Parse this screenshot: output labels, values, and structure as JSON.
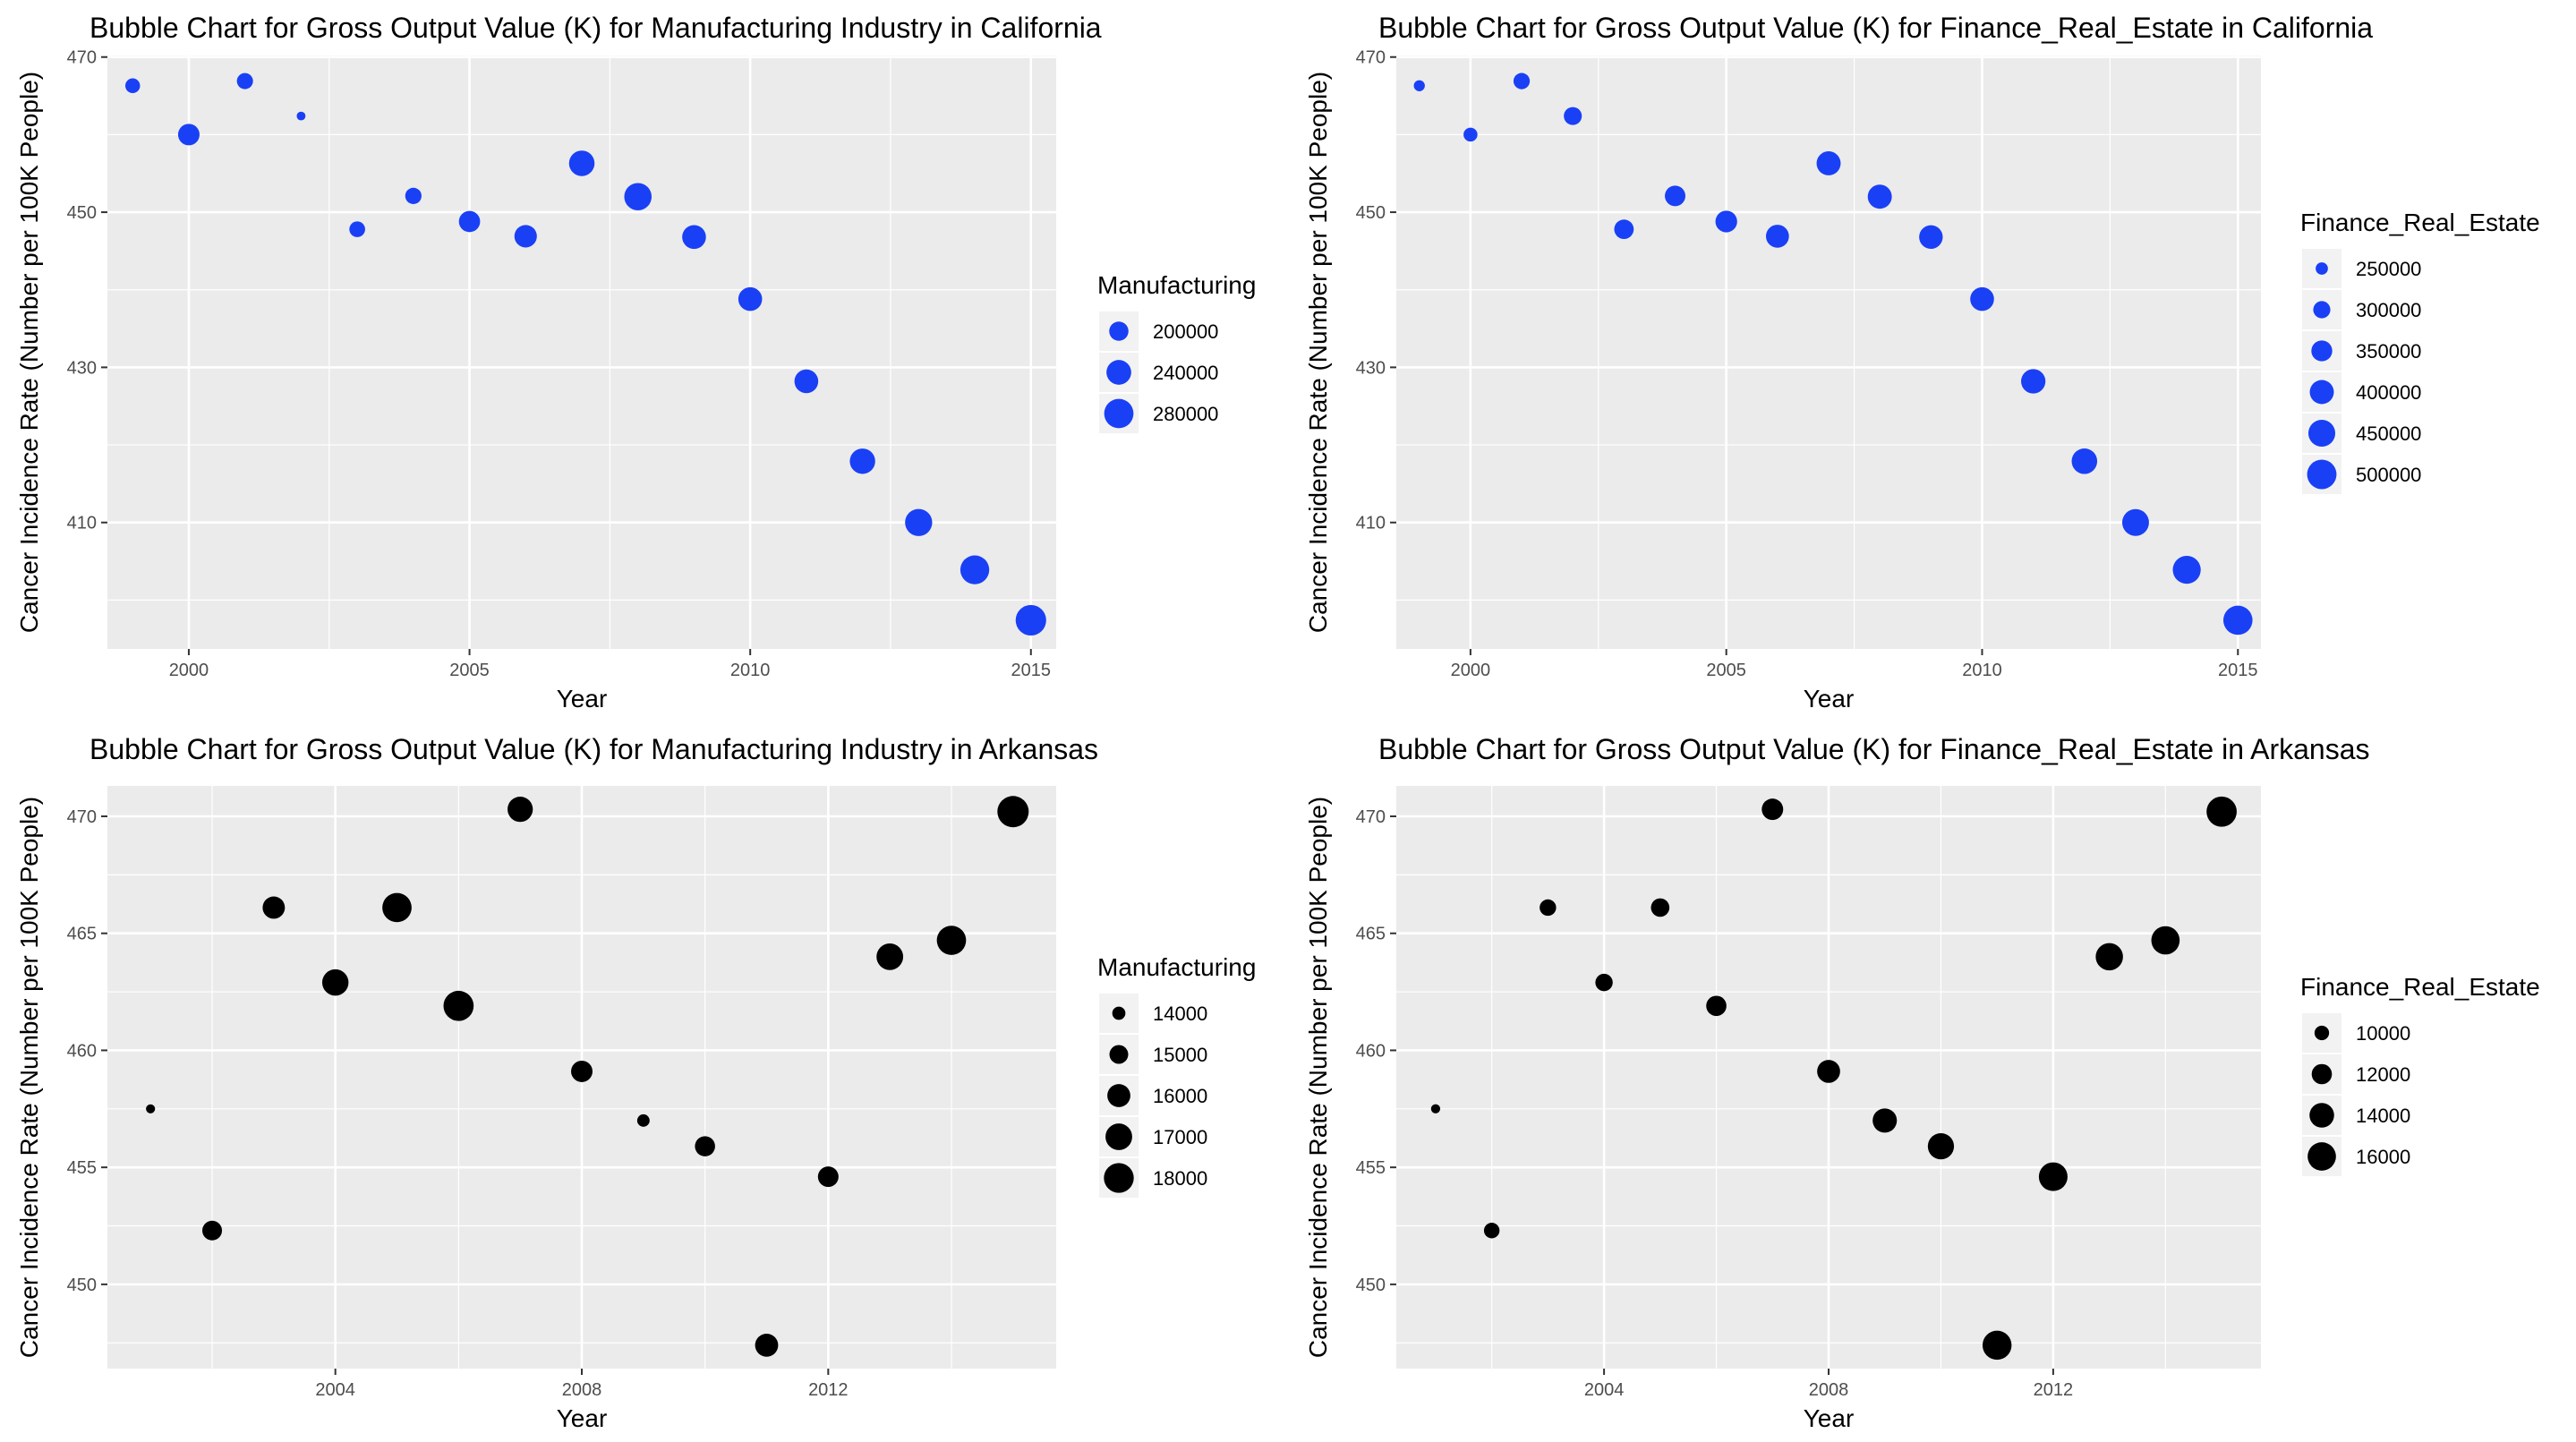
{
  "chart_data": [
    {
      "type": "scatter",
      "title": "Bubble Chart for Gross Output Value (K) for Manufacturing Industry in California",
      "xlabel": "Year",
      "ylabel": "Cancer Incidence Rate (Number per 100K People)",
      "xlim": [
        1998.55,
        2015.45
      ],
      "ylim": [
        393.7,
        470.2
      ],
      "xticks": [
        2000,
        2005,
        2010,
        2015
      ],
      "yticks": [
        410,
        430,
        450,
        470
      ],
      "grid": true,
      "color": "#1a40f5",
      "legend": {
        "title": "Manufacturing",
        "placement": "right",
        "items": [
          {
            "label": "200000",
            "size": 200000
          },
          {
            "label": "240000",
            "size": 240000
          },
          {
            "label": "280000",
            "size": 280000
          }
        ]
      },
      "size_range": [
        150000,
        300000
      ],
      "points": [
        {
          "x": 1999,
          "y": 466.3,
          "size": 175000
        },
        {
          "x": 2000,
          "y": 460.0,
          "size": 215000
        },
        {
          "x": 2001,
          "y": 466.9,
          "size": 182000
        },
        {
          "x": 2002,
          "y": 462.4,
          "size": 152000
        },
        {
          "x": 2003,
          "y": 447.8,
          "size": 180000
        },
        {
          "x": 2004,
          "y": 452.1,
          "size": 183000
        },
        {
          "x": 2005,
          "y": 448.8,
          "size": 213000
        },
        {
          "x": 2006,
          "y": 446.9,
          "size": 222000
        },
        {
          "x": 2007,
          "y": 456.3,
          "size": 246000
        },
        {
          "x": 2008,
          "y": 452.0,
          "size": 262000
        },
        {
          "x": 2009,
          "y": 446.8,
          "size": 232000
        },
        {
          "x": 2010,
          "y": 438.8,
          "size": 232000
        },
        {
          "x": 2011,
          "y": 428.2,
          "size": 232000
        },
        {
          "x": 2012,
          "y": 417.9,
          "size": 245000
        },
        {
          "x": 2013,
          "y": 410.0,
          "size": 260000
        },
        {
          "x": 2014,
          "y": 403.9,
          "size": 276000
        },
        {
          "x": 2015,
          "y": 397.4,
          "size": 292000
        }
      ]
    },
    {
      "type": "scatter",
      "title": "Bubble Chart for Gross Output Value (K) for Finance_Real_Estate in California",
      "xlabel": "Year",
      "ylabel": "Cancer Incidence Rate (Number per 100K People)",
      "xlim": [
        1998.55,
        2015.45
      ],
      "ylim": [
        393.7,
        470.2
      ],
      "xticks": [
        2000,
        2005,
        2010,
        2015
      ],
      "yticks": [
        410,
        430,
        450,
        470
      ],
      "grid": true,
      "color": "#1a40f5",
      "legend": {
        "title": "Finance_Real_Estate",
        "placement": "right",
        "items": [
          {
            "label": "250000",
            "size": 250000
          },
          {
            "label": "300000",
            "size": 300000
          },
          {
            "label": "350000",
            "size": 350000
          },
          {
            "label": "400000",
            "size": 400000
          },
          {
            "label": "450000",
            "size": 450000
          },
          {
            "label": "500000",
            "size": 500000
          }
        ]
      },
      "size_range": [
        220000,
        540000
      ],
      "points": [
        {
          "x": 1999,
          "y": 466.3,
          "size": 240000
        },
        {
          "x": 2000,
          "y": 460.0,
          "size": 265000
        },
        {
          "x": 2001,
          "y": 466.9,
          "size": 290000
        },
        {
          "x": 2002,
          "y": 462.4,
          "size": 310000
        },
        {
          "x": 2003,
          "y": 447.8,
          "size": 330000
        },
        {
          "x": 2004,
          "y": 452.1,
          "size": 345000
        },
        {
          "x": 2005,
          "y": 448.8,
          "size": 362000
        },
        {
          "x": 2006,
          "y": 446.9,
          "size": 382000
        },
        {
          "x": 2007,
          "y": 456.3,
          "size": 400000
        },
        {
          "x": 2008,
          "y": 452.0,
          "size": 400000
        },
        {
          "x": 2009,
          "y": 446.8,
          "size": 392000
        },
        {
          "x": 2010,
          "y": 438.8,
          "size": 395000
        },
        {
          "x": 2011,
          "y": 428.2,
          "size": 405000
        },
        {
          "x": 2012,
          "y": 417.9,
          "size": 425000
        },
        {
          "x": 2013,
          "y": 410.0,
          "size": 448000
        },
        {
          "x": 2014,
          "y": 403.9,
          "size": 470000
        },
        {
          "x": 2015,
          "y": 397.4,
          "size": 495000
        }
      ]
    },
    {
      "type": "scatter",
      "title": "Bubble Chart for Gross Output Value (K) for Manufacturing Industry in Arkansas",
      "xlabel": "Year",
      "ylabel": "Cancer Incidence Rate (Number per 100K People)",
      "xlim": [
        2000.3,
        2015.7
      ],
      "ylim": [
        446.4,
        471.3
      ],
      "xticks": [
        2004,
        2008,
        2012
      ],
      "yticks": [
        450,
        455,
        460,
        465,
        470
      ],
      "grid": true,
      "color": "#000000",
      "legend": {
        "title": "Manufacturing",
        "placement": "right",
        "items": [
          {
            "label": "14000",
            "size": 14000
          },
          {
            "label": "15000",
            "size": 15000
          },
          {
            "label": "16000",
            "size": 16000
          },
          {
            "label": "17000",
            "size": 17000
          },
          {
            "label": "18000",
            "size": 18000
          }
        ]
      },
      "size_range": [
        13400,
        18500
      ],
      "points": [
        {
          "x": 2001,
          "y": 457.5,
          "size": 13500
        },
        {
          "x": 2002,
          "y": 452.3,
          "size": 15200
        },
        {
          "x": 2003,
          "y": 466.1,
          "size": 15800
        },
        {
          "x": 2004,
          "y": 462.9,
          "size": 16900
        },
        {
          "x": 2005,
          "y": 466.1,
          "size": 17800
        },
        {
          "x": 2006,
          "y": 461.9,
          "size": 18100
        },
        {
          "x": 2007,
          "y": 470.3,
          "size": 16600
        },
        {
          "x": 2008,
          "y": 459.1,
          "size": 15600
        },
        {
          "x": 2009,
          "y": 457.0,
          "size": 13900
        },
        {
          "x": 2010,
          "y": 455.9,
          "size": 15300
        },
        {
          "x": 2011,
          "y": 447.4,
          "size": 16000
        },
        {
          "x": 2012,
          "y": 454.6,
          "size": 15400
        },
        {
          "x": 2013,
          "y": 464.0,
          "size": 17000
        },
        {
          "x": 2014,
          "y": 464.7,
          "size": 17800
        },
        {
          "x": 2015,
          "y": 470.2,
          "size": 18500
        }
      ]
    },
    {
      "type": "scatter",
      "title": "Bubble Chart for Gross Output Value (K) for Finance_Real_Estate in Arkansas",
      "xlabel": "Year",
      "ylabel": "Cancer Incidence Rate (Number per 100K People)",
      "xlim": [
        2000.3,
        2015.7
      ],
      "ylim": [
        446.4,
        471.3
      ],
      "xticks": [
        2004,
        2008,
        2012
      ],
      "yticks": [
        450,
        455,
        460,
        465,
        470
      ],
      "grid": true,
      "color": "#000000",
      "legend": {
        "title": "Finance_Real_Estate",
        "placement": "right",
        "items": [
          {
            "label": "10000",
            "size": 10000
          },
          {
            "label": "12000",
            "size": 12000
          },
          {
            "label": "14000",
            "size": 14000
          },
          {
            "label": "16000",
            "size": 16000
          }
        ]
      },
      "size_range": [
        8500,
        17800
      ],
      "points": [
        {
          "x": 2001,
          "y": 457.5,
          "size": 8700
        },
        {
          "x": 2002,
          "y": 452.3,
          "size": 10300
        },
        {
          "x": 2003,
          "y": 466.1,
          "size": 10600
        },
        {
          "x": 2004,
          "y": 462.9,
          "size": 10900
        },
        {
          "x": 2005,
          "y": 466.1,
          "size": 11300
        },
        {
          "x": 2006,
          "y": 461.9,
          "size": 12000
        },
        {
          "x": 2007,
          "y": 470.3,
          "size": 12500
        },
        {
          "x": 2008,
          "y": 459.1,
          "size": 13200
        },
        {
          "x": 2009,
          "y": 457.0,
          "size": 13800
        },
        {
          "x": 2010,
          "y": 455.9,
          "size": 14800
        },
        {
          "x": 2011,
          "y": 447.4,
          "size": 16400
        },
        {
          "x": 2012,
          "y": 454.6,
          "size": 16200
        },
        {
          "x": 2013,
          "y": 464.0,
          "size": 15400
        },
        {
          "x": 2014,
          "y": 464.7,
          "size": 16000
        },
        {
          "x": 2015,
          "y": 470.2,
          "size": 17100
        }
      ]
    }
  ]
}
